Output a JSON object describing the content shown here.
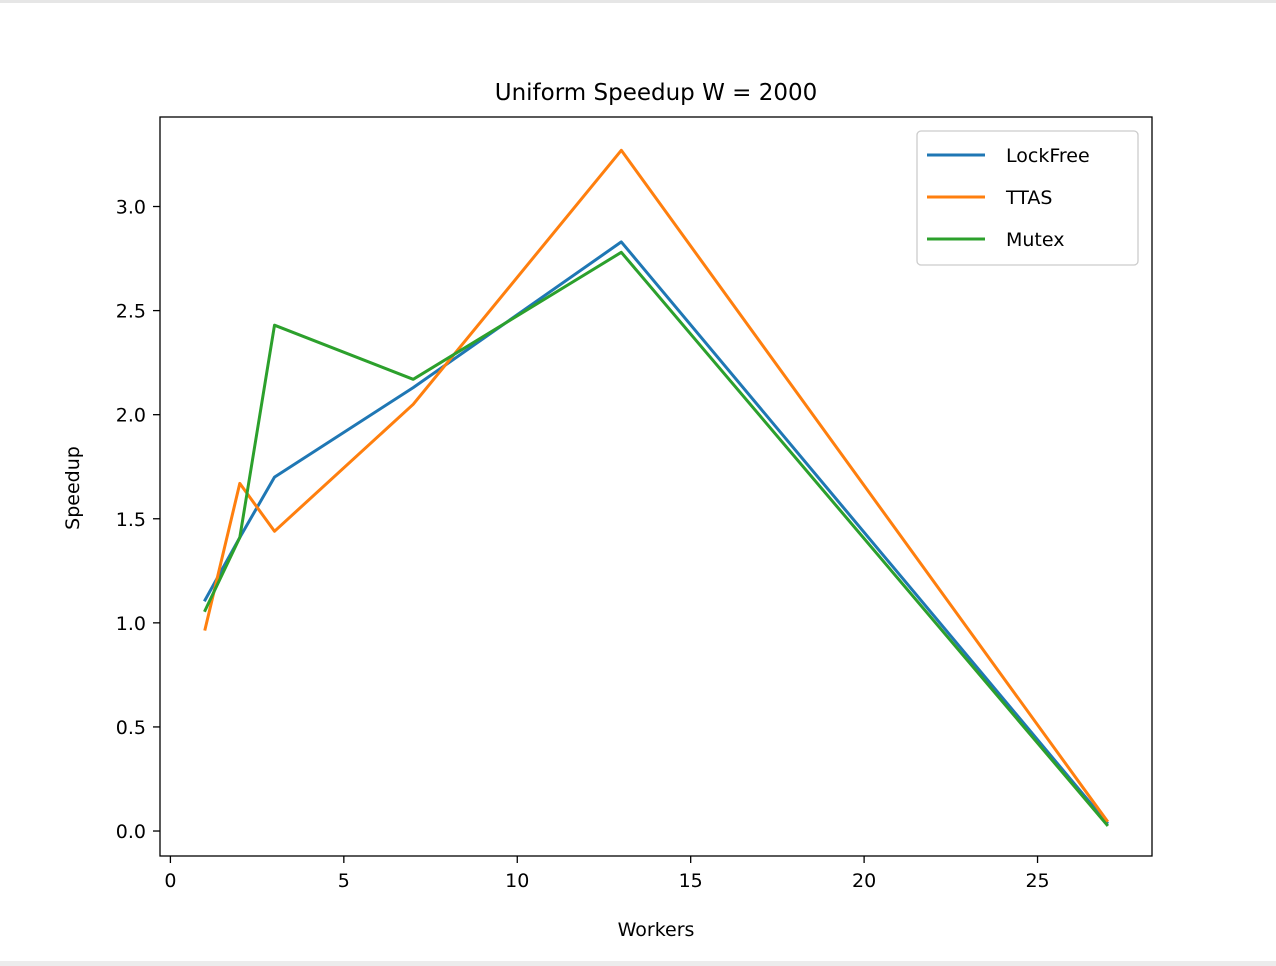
{
  "chart_data": {
    "type": "line",
    "title": "Uniform Speedup W = 2000",
    "xlabel": "Workers",
    "ylabel": "Speedup",
    "xlim": [
      -0.3,
      28.3
    ],
    "ylim": [
      -0.12,
      3.43
    ],
    "xticks": [
      0,
      5,
      10,
      15,
      20,
      25
    ],
    "yticks": [
      0.0,
      0.5,
      1.0,
      1.5,
      2.0,
      2.5,
      3.0
    ],
    "xtick_labels": [
      "0",
      "5",
      "10",
      "15",
      "20",
      "25"
    ],
    "ytick_labels": [
      "0.0",
      "0.5",
      "1.0",
      "1.5",
      "2.0",
      "2.5",
      "3.0"
    ],
    "grid": false,
    "legend_position": "top-right",
    "series": [
      {
        "name": "LockFree",
        "color": "#1f77b4",
        "x": [
          1,
          2,
          3,
          7,
          13,
          27
        ],
        "y": [
          1.11,
          1.41,
          1.7,
          2.13,
          2.83,
          0.04
        ]
      },
      {
        "name": "TTAS",
        "color": "#ff7f0e",
        "x": [
          1,
          2,
          3,
          7,
          13,
          27
        ],
        "y": [
          0.97,
          1.67,
          1.44,
          2.05,
          3.27,
          0.05
        ]
      },
      {
        "name": "Mutex",
        "color": "#2ca02c",
        "x": [
          1,
          2,
          3,
          7,
          13,
          27
        ],
        "y": [
          1.06,
          1.41,
          2.43,
          2.17,
          2.78,
          0.03
        ]
      }
    ]
  }
}
